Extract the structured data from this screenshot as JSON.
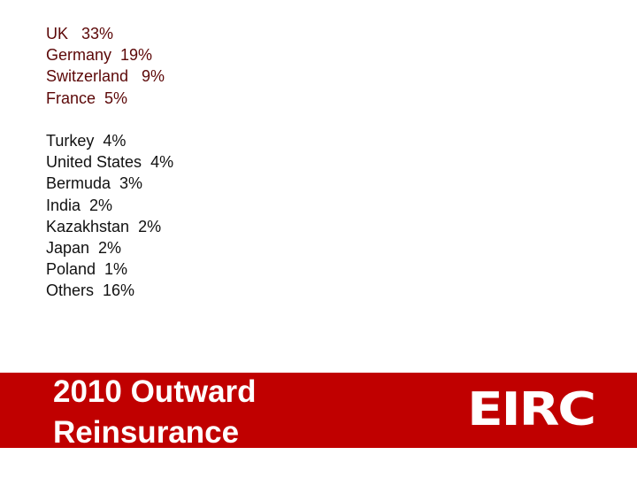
{
  "groups": [
    [
      "UK   33%",
      "Germany  19%",
      "Switzerland   9%",
      "France  5%"
    ],
    [
      "Turkey  4%",
      "United States  4%",
      "Bermuda  3%",
      "India  2%",
      "Kazakhstan  2%",
      "Japan  2%",
      "Poland  1%",
      "Others  16%"
    ]
  ],
  "banner": {
    "title": [
      "2010 Outward",
      "Reinsurance"
    ],
    "logo": "EIRC"
  }
}
